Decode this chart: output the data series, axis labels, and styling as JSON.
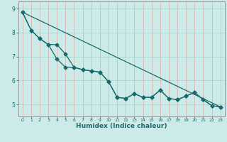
{
  "xlabel": "Humidex (Indice chaleur)",
  "bg_color": "#cceae8",
  "grid_color_h": "#aad4d0",
  "grid_color_v": "#ddb8b8",
  "line_color": "#1a6b6b",
  "x_values": [
    0,
    1,
    2,
    3,
    4,
    5,
    6,
    7,
    8,
    9,
    10,
    11,
    12,
    13,
    14,
    15,
    16,
    17,
    18,
    19,
    20,
    21,
    22,
    23
  ],
  "line1": [
    8.85,
    8.1,
    7.75,
    7.5,
    6.9,
    6.55,
    6.55,
    6.45,
    6.4,
    6.35,
    5.95,
    5.3,
    5.25,
    5.45,
    5.3,
    5.3,
    5.6,
    5.25,
    5.2,
    5.35,
    5.5,
    5.2,
    4.95,
    4.9
  ],
  "line2": [
    8.85,
    8.1,
    7.75,
    7.5,
    7.5,
    7.1,
    6.55,
    6.45,
    6.4,
    6.35,
    5.95,
    5.3,
    5.25,
    5.45,
    5.3,
    5.3,
    5.6,
    5.25,
    5.2,
    5.35,
    5.5,
    5.2,
    4.95,
    4.9
  ],
  "line3_y": [
    8.85,
    4.9
  ],
  "line3_x": [
    0,
    23
  ],
  "ylim": [
    4.5,
    9.3
  ],
  "xlim": [
    -0.5,
    23.5
  ],
  "yticks": [
    5,
    6,
    7,
    8,
    9
  ],
  "xticks": [
    0,
    1,
    2,
    3,
    4,
    5,
    6,
    7,
    8,
    9,
    10,
    11,
    12,
    13,
    14,
    15,
    16,
    17,
    18,
    19,
    20,
    21,
    22,
    23
  ],
  "markersize": 2.5
}
